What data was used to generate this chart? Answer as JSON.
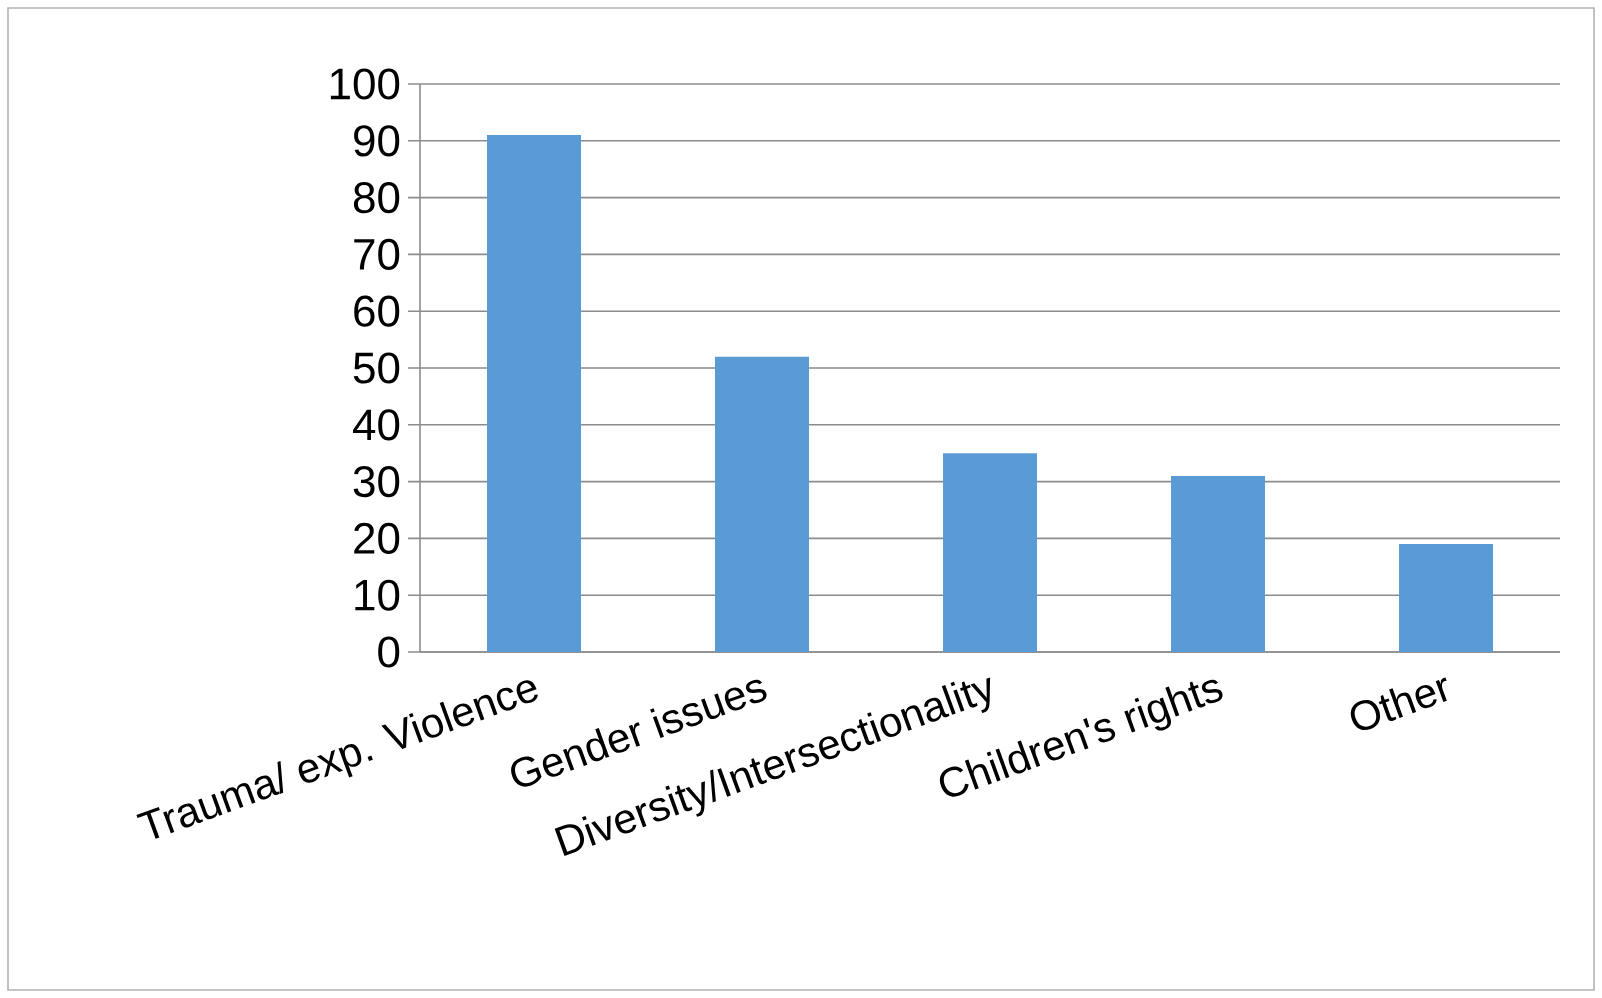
{
  "chart_data": {
    "type": "bar",
    "categories": [
      "Trauma/ exp. Violence",
      "Gender issues",
      "Diversity/Intersectionality",
      "Children's rights",
      "Other"
    ],
    "values": [
      91,
      52,
      35,
      31,
      19
    ],
    "color": "#5b9bd5",
    "ylim": [
      0,
      100
    ],
    "yticks": [
      0,
      10,
      20,
      30,
      40,
      50,
      60,
      70,
      80,
      90,
      100
    ],
    "grid": "y"
  }
}
